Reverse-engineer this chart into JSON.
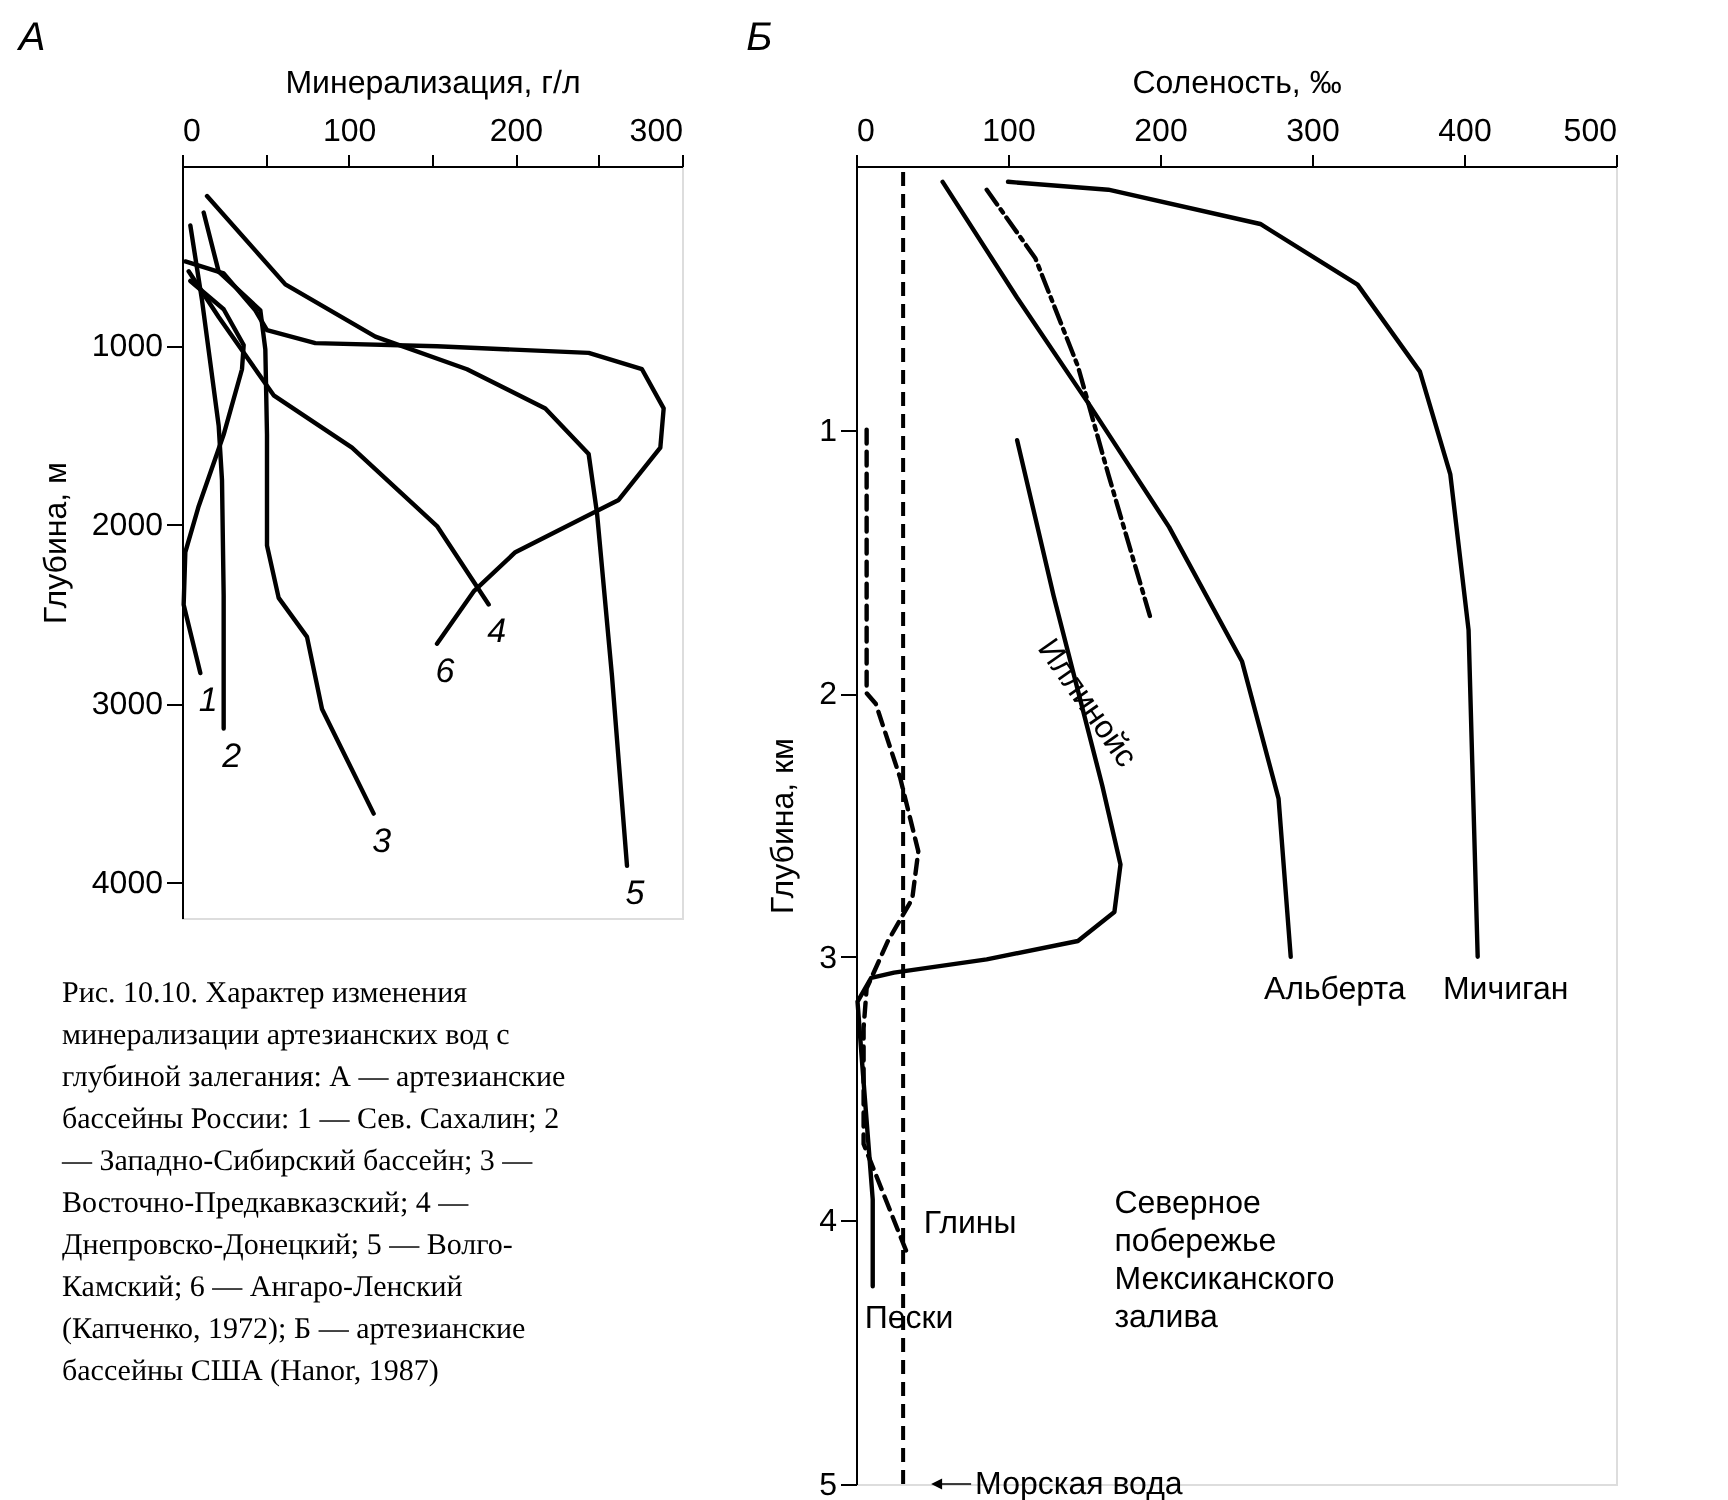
{
  "chart_data": [
    {
      "type": "line",
      "title": "А",
      "xlabel": "Минерализация, г/л",
      "ylabel": "Глубина, м",
      "xlim": [
        0,
        300
      ],
      "xticks": [
        0,
        {
          "value": 50,
          "label": null
        },
        100,
        {
          "value": 150,
          "label": null
        },
        200,
        {
          "value": 250,
          "label": null
        },
        300
      ],
      "ylim": [
        4200,
        0
      ],
      "yticks": [
        1000,
        2000,
        3000,
        4000
      ],
      "grid": false,
      "marker": "none",
      "series": [
        {
          "name": "1",
          "color": "#000000",
          "line_style": "solid",
          "x": [
            5,
            25,
            37,
            36,
            25,
            10,
            2,
            1,
            11
          ],
          "values": [
            642,
            800,
            1000,
            1135,
            1500,
            1900,
            2157,
            2450,
            2832
          ]
        },
        {
          "name": "2",
          "color": "#000000",
          "line_style": "solid",
          "x": [
            5,
            12,
            18,
            22,
            24,
            25,
            25
          ],
          "values": [
            332,
            750,
            1170,
            1450,
            1755,
            2400,
            3142
          ]
        },
        {
          "name": "3",
          "color": "#000000",
          "line_style": "solid",
          "x": [
            13,
            22,
            47,
            50,
            51,
            51,
            58,
            75,
            84,
            115
          ],
          "values": [
            260,
            590,
            806,
            1025,
            1500,
            2120,
            2412,
            2630,
            3033,
            3617
          ]
        },
        {
          "name": "4",
          "color": "#000000",
          "line_style": "solid",
          "x": [
            4,
            22,
            55,
            102,
            153,
            184
          ],
          "values": [
            588,
            843,
            1281,
            1573,
            2011,
            2449
          ]
        },
        {
          "name": "5",
          "color": "#000000",
          "line_style": "solid",
          "x": [
            15,
            62,
            116,
            171,
            218,
            244,
            249,
            258,
            267
          ],
          "values": [
            168,
            661,
            953,
            1135,
            1354,
            1609,
            1938,
            2850,
            3909
          ]
        },
        {
          "name": "6",
          "color": "#000000",
          "line_style": "solid",
          "x": [
            2,
            25,
            44,
            51,
            80,
            153,
            244,
            276,
            289,
            287,
            262,
            200,
            175,
            153
          ],
          "values": [
            533,
            600,
            806,
            916,
            989,
            1007,
            1044,
            1135,
            1354,
            1573,
            1865,
            2157,
            2376,
            2668
          ]
        }
      ],
      "annotations": [
        "Рис. 10.10. Характер изменения минерализации артезианских вод с глубиной залегания: А — артезианские бассейны России: 1 — Сев. Сахалин; 2 — Западно-Сибирский бассейн; 3 — Восточно-Предкавказский; 4 — Днепровско-Донецкий; 5 — Волго-Камский; 6 — Ангаро-Ленский (Капченко, 1972); Б — артезианские бассейны США (Hanor, 1987)"
      ]
    },
    {
      "type": "line",
      "title": "Б",
      "xlabel": "Соленость, ‰",
      "ylabel": "Глубина, км",
      "xlim": [
        0,
        500
      ],
      "xticks": [
        0,
        100,
        200,
        300,
        400,
        500
      ],
      "ylim": [
        5,
        0
      ],
      "yticks": [
        1,
        2,
        3,
        4,
        5
      ],
      "grid": false,
      "marker": "none",
      "series": [
        {
          "name": "Мичиган",
          "color": "#000000",
          "line_style": "solid",
          "x": [
            100,
            166,
            266,
            330,
            371,
            391,
            403,
            409
          ],
          "values": [
            0.06,
            0.09,
            0.22,
            0.45,
            0.78,
            1.17,
            1.76,
            3.0
          ]
        },
        {
          "name": "Альберта",
          "color": "#000000",
          "line_style": "solid",
          "x": [
            57,
            106,
            154,
            206,
            254,
            278,
            286
          ],
          "values": [
            0.06,
            0.5,
            0.91,
            1.37,
            1.88,
            2.4,
            3.0
          ]
        },
        {
          "name": "Иллинойс",
          "color": "#000000",
          "line_style": "dashdot",
          "x": [
            86,
            118,
            146,
            166,
            194
          ],
          "values": [
            0.09,
            0.35,
            0.76,
            1.17,
            1.72
          ]
        },
        {
          "name": "Пески",
          "color": "#000000",
          "line_style": "solid",
          "x": [
            106,
            130,
            162,
            174,
            170,
            146,
            86,
            25,
            10,
            1,
            4,
            11,
            11
          ],
          "values": [
            1.04,
            1.63,
            2.35,
            2.65,
            2.83,
            2.94,
            3.01,
            3.06,
            3.08,
            3.17,
            3.4,
            3.92,
            4.25
          ]
        },
        {
          "name": "Глины",
          "color": "#000000",
          "line_style": "dashed",
          "x": [
            7,
            7,
            13,
            29,
            41,
            37,
            21,
            7,
            5,
            5,
            34
          ],
          "values": [
            1.0,
            2.0,
            2.04,
            2.32,
            2.6,
            2.78,
            2.94,
            3.12,
            3.27,
            3.71,
            4.13
          ]
        }
      ],
      "ref_lines": [
        {
          "axis": "x",
          "value": 31,
          "label": "Морская вода",
          "color": "#000000",
          "line_style": "dashed"
        }
      ],
      "annotations": [
        "Северное побережье Мексиканского залива"
      ]
    }
  ]
}
